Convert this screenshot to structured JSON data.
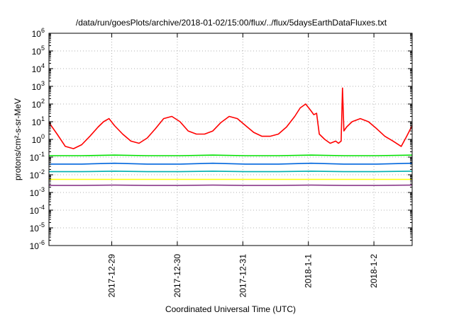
{
  "chart_data": {
    "type": "line",
    "title": "/data/run/goesPlots/archive/2018-01-02/15:00/flux/../flux/5daysEarthDataFluxes.txt",
    "xlabel": "Coordinated Universal Time (UTC)",
    "ylabel": "protons/cm²-s-sr-MeV",
    "yscale": "log",
    "ylim": [
      "1e-6",
      "1e6"
    ],
    "y_ticks": [
      {
        "base": "10",
        "exp": "-6"
      },
      {
        "base": "10",
        "exp": "-5"
      },
      {
        "base": "10",
        "exp": "-4"
      },
      {
        "base": "10",
        "exp": "-3"
      },
      {
        "base": "10",
        "exp": "-2"
      },
      {
        "base": "10",
        "exp": "-1"
      },
      {
        "base": "10",
        "exp": "0"
      },
      {
        "base": "10",
        "exp": "1"
      },
      {
        "base": "10",
        "exp": "2"
      },
      {
        "base": "10",
        "exp": "3"
      },
      {
        "base": "10",
        "exp": "4"
      },
      {
        "base": "10",
        "exp": "5"
      },
      {
        "base": "10",
        "exp": "6"
      }
    ],
    "x_ticks": [
      "2017-12-29",
      "2017-12-30",
      "2017-12-31",
      "2018-1-1",
      "2018-1-2"
    ],
    "xlim": [
      "2017-12-28 01:00",
      "2018-01-02 14:00"
    ],
    "grid": true,
    "series": [
      {
        "color": "#ff0000",
        "x": [
          "2017-12-28 01:00",
          "2017-12-28 04:00",
          "2017-12-28 07:00",
          "2017-12-28 10:00",
          "2017-12-28 13:00",
          "2017-12-28 16:00",
          "2017-12-28 19:00",
          "2017-12-28 21:00",
          "2017-12-28 23:00",
          "2017-12-29 01:00",
          "2017-12-29 04:00",
          "2017-12-29 07:00",
          "2017-12-29 10:00",
          "2017-12-29 13:00",
          "2017-12-29 16:00",
          "2017-12-29 19:00",
          "2017-12-29 22:00",
          "2017-12-30 01:00",
          "2017-12-30 04:00",
          "2017-12-30 07:00",
          "2017-12-30 10:00",
          "2017-12-30 13:00",
          "2017-12-30 16:00",
          "2017-12-30 19:00",
          "2017-12-30 22:00",
          "2017-12-31 01:00",
          "2017-12-31 04:00",
          "2017-12-31 07:00",
          "2017-12-31 10:00",
          "2017-12-31 13:00",
          "2017-12-31 16:00",
          "2017-12-31 19:00",
          "2017-12-31 21:00",
          "2017-12-31 23:00",
          "2018-01-01 01:00",
          "2018-01-01 02:00",
          "2018-01-01 03:00",
          "2018-01-01 04:00",
          "2018-01-01 06:00",
          "2018-01-01 08:00",
          "2018-01-01 10:00",
          "2018-01-01 11:00",
          "2018-01-01 12:00",
          "2018-01-01 12:30",
          "2018-01-01 13:00",
          "2018-01-01 14:00",
          "2018-01-01 16:00",
          "2018-01-01 19:00",
          "2018-01-01 22:00",
          "2018-01-02 01:00",
          "2018-01-02 04:00",
          "2018-01-02 07:00",
          "2018-01-02 10:00",
          "2018-01-02 12:00",
          "2018-01-02 14:00"
        ],
        "values": [
          9,
          2,
          0.4,
          0.3,
          0.5,
          1.5,
          5,
          10,
          15,
          6,
          2,
          0.8,
          0.6,
          1.2,
          4,
          15,
          20,
          10,
          3,
          2,
          2,
          3,
          9,
          20,
          15,
          6,
          2.5,
          1.5,
          1.5,
          2,
          5,
          20,
          60,
          100,
          40,
          25,
          30,
          2,
          1,
          0.6,
          0.8,
          0.6,
          0.8,
          800,
          3,
          5,
          10,
          15,
          10,
          4,
          1.5,
          0.8,
          0.4,
          1.5,
          6
        ]
      },
      {
        "color": "#00e000",
        "x": [
          "2017-12-28 01:00",
          "2017-12-28 13:00",
          "2017-12-29 01:00",
          "2017-12-29 13:00",
          "2017-12-30 01:00",
          "2017-12-30 13:00",
          "2017-12-31 01:00",
          "2017-12-31 13:00",
          "2018-01-01 01:00",
          "2018-01-01 13:00",
          "2018-01-02 01:00",
          "2018-01-02 14:00"
        ],
        "values": [
          0.12,
          0.12,
          0.13,
          0.12,
          0.12,
          0.13,
          0.12,
          0.12,
          0.13,
          0.12,
          0.12,
          0.13
        ]
      },
      {
        "color": "#0066dd",
        "x": [
          "2017-12-28 01:00",
          "2017-12-28 13:00",
          "2017-12-29 01:00",
          "2017-12-29 13:00",
          "2017-12-30 01:00",
          "2017-12-30 13:00",
          "2017-12-31 01:00",
          "2017-12-31 13:00",
          "2018-01-01 01:00",
          "2018-01-01 13:00",
          "2018-01-02 01:00",
          "2018-01-02 14:00"
        ],
        "values": [
          0.04,
          0.04,
          0.045,
          0.04,
          0.04,
          0.045,
          0.04,
          0.04,
          0.045,
          0.04,
          0.04,
          0.045
        ]
      },
      {
        "color": "#00b0b0",
        "x": [
          "2017-12-28 01:00",
          "2017-12-28 13:00",
          "2017-12-29 01:00",
          "2017-12-29 13:00",
          "2017-12-30 01:00",
          "2017-12-30 13:00",
          "2017-12-31 01:00",
          "2017-12-31 13:00",
          "2018-01-01 01:00",
          "2018-01-01 13:00",
          "2018-01-02 01:00",
          "2018-01-02 14:00"
        ],
        "values": [
          0.015,
          0.015,
          0.016,
          0.015,
          0.015,
          0.016,
          0.015,
          0.015,
          0.016,
          0.015,
          0.015,
          0.016
        ]
      },
      {
        "color": "#ffff00",
        "x": [
          "2017-12-28 01:00",
          "2017-12-28 13:00",
          "2017-12-29 01:00",
          "2017-12-29 13:00",
          "2017-12-30 01:00",
          "2017-12-30 13:00",
          "2017-12-31 01:00",
          "2017-12-31 13:00",
          "2018-01-01 01:00",
          "2018-01-01 13:00",
          "2018-01-02 01:00",
          "2018-01-02 14:00"
        ],
        "values": [
          0.0055,
          0.0055,
          0.0055,
          0.0055,
          0.0055,
          0.0055,
          0.0055,
          0.0055,
          0.0055,
          0.0055,
          0.0055,
          0.0055
        ]
      },
      {
        "color": "#8b3a8b",
        "x": [
          "2017-12-28 01:00",
          "2017-12-28 13:00",
          "2017-12-29 01:00",
          "2017-12-29 13:00",
          "2017-12-30 01:00",
          "2017-12-30 13:00",
          "2017-12-31 01:00",
          "2017-12-31 13:00",
          "2018-01-01 01:00",
          "2018-01-01 13:00",
          "2018-01-02 01:00",
          "2018-01-02 14:00"
        ],
        "values": [
          0.0025,
          0.0025,
          0.0026,
          0.0025,
          0.0025,
          0.0026,
          0.0025,
          0.0025,
          0.0026,
          0.0025,
          0.0025,
          0.0026
        ]
      }
    ]
  }
}
